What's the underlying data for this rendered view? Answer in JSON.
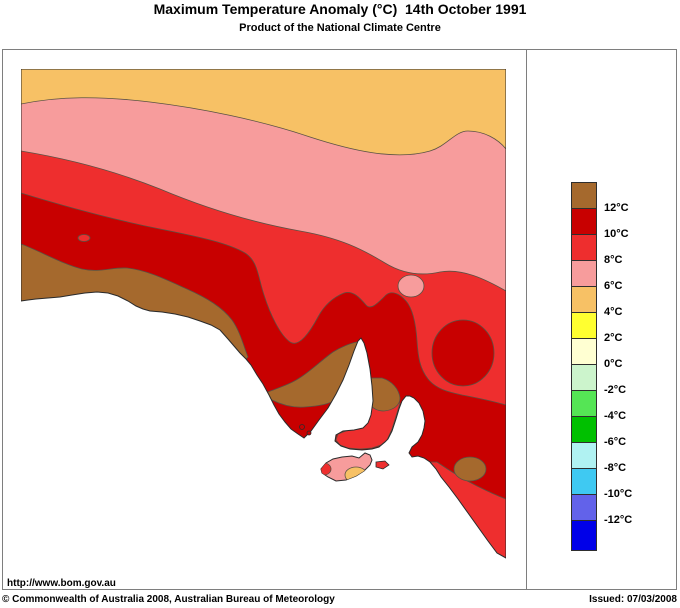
{
  "page": {
    "title": "Maximum Temperature Anomaly (°C)  14th October 1991",
    "subtitle": "Product of the National Climate Centre",
    "url": "http://www.bom.gov.au",
    "copyright": "© Commonwealth of Australia 2008, Australian Bureau of Meteorology",
    "issued": "Issued: 07/03/2008"
  },
  "legend": {
    "unit": "°C",
    "blocks": [
      {
        "color": "#A5692D",
        "boundary_label": "12°C"
      },
      {
        "color": "#C80000",
        "boundary_label": "10°C"
      },
      {
        "color": "#EE2E2E",
        "boundary_label": "8°C"
      },
      {
        "color": "#F79C9C",
        "boundary_label": "6°C"
      },
      {
        "color": "#F7C165",
        "boundary_label": "4°C"
      },
      {
        "color": "#FFFF30",
        "boundary_label": "2°C"
      },
      {
        "color": "#FFFFD2",
        "boundary_label": "0°C"
      },
      {
        "color": "#CCF4CC",
        "boundary_label": "-2°C"
      },
      {
        "color": "#55E555",
        "boundary_label": "-4°C"
      },
      {
        "color": "#00C000",
        "boundary_label": "-6°C"
      },
      {
        "color": "#B0F2F2",
        "boundary_label": "-8°C"
      },
      {
        "color": "#3FC9F2",
        "boundary_label": "-10°C"
      },
      {
        "color": "#6262EA",
        "boundary_label": "-12°C"
      },
      {
        "color": "#0000E8",
        "boundary_label": null
      }
    ]
  },
  "map": {
    "colors": {
      "ocean": "#FFFFFF",
      "band_above_12": "#A5692D",
      "band_10_12": "#C80000",
      "band_8_10": "#EE2E2E",
      "band_6_8": "#F79C9C",
      "band_4_6": "#F7C165",
      "contour": "#5A5244",
      "coast": "#2B2B2B"
    }
  }
}
